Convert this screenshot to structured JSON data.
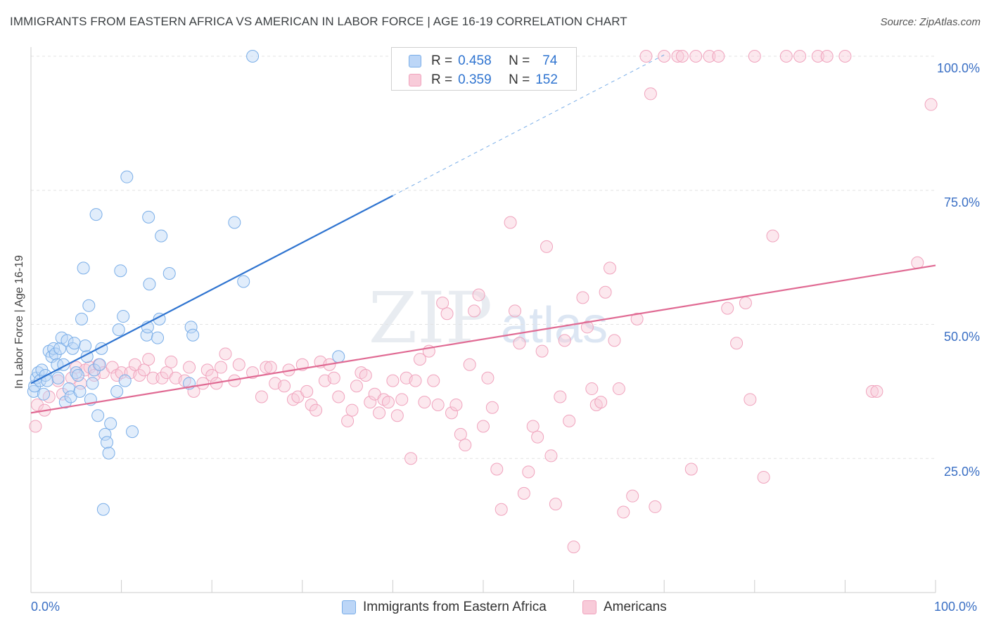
{
  "title": "IMMIGRANTS FROM EASTERN AFRICA VS AMERICAN IN LABOR FORCE | AGE 16-19 CORRELATION CHART",
  "source": "Source: ZipAtlas.com",
  "colors": {
    "blue": "#7aaee8",
    "blue_fill": "#bcd6f7",
    "blue_line": "#2f74d0",
    "pink": "#f0a3bd",
    "pink_fill": "#f8cbd9",
    "pink_line": "#e06a93",
    "axis_text": "#3a6fc4"
  },
  "legend": {
    "rows": [
      {
        "r_label": "R =",
        "r_value": "0.458",
        "n_label": "N =",
        "n_value": "74"
      },
      {
        "r_label": "R =",
        "r_value": "0.359",
        "n_label": "N =",
        "n_value": "152"
      }
    ]
  },
  "bottom_legend": [
    "Immigrants from Eastern Africa",
    "Americans"
  ],
  "watermark": {
    "zip": "ZIP",
    "atlas": "atlas"
  },
  "chart_data": {
    "type": "scatter",
    "title": "IMMIGRANTS FROM EASTERN AFRICA VS AMERICAN IN LABOR FORCE | AGE 16-19 CORRELATION CHART",
    "xlabel": "",
    "ylabel": "In Labor Force | Age 16-19",
    "xlim": [
      0,
      100
    ],
    "ylim": [
      0,
      100
    ],
    "x_tick_labels": [
      "0.0%",
      "100.0%"
    ],
    "y_tick_labels": [
      "25.0%",
      "50.0%",
      "75.0%",
      "100.0%"
    ],
    "y_ticks": [
      25,
      50,
      75,
      100
    ],
    "grid": true,
    "legend_position": "top-center",
    "series": [
      {
        "name": "Immigrants from Eastern Africa",
        "color": "#7aaee8",
        "trend": {
          "x0": 0,
          "y0": 39.0,
          "x1": 40.0,
          "y1": 74.0,
          "dashed_to_x": 70.0
        },
        "points": [
          [
            0.3,
            37.5
          ],
          [
            0.4,
            38.5
          ],
          [
            0.6,
            40.0
          ],
          [
            0.8,
            41.0
          ],
          [
            1.0,
            39.5
          ],
          [
            1.2,
            41.5
          ],
          [
            1.4,
            37.0
          ],
          [
            1.6,
            40.5
          ],
          [
            1.8,
            39.5
          ],
          [
            2.0,
            45.0
          ],
          [
            2.3,
            44.0
          ],
          [
            2.5,
            45.5
          ],
          [
            2.7,
            44.5
          ],
          [
            2.9,
            42.5
          ],
          [
            3.0,
            40.0
          ],
          [
            3.2,
            45.5
          ],
          [
            3.4,
            47.5
          ],
          [
            3.6,
            42.5
          ],
          [
            3.8,
            35.5
          ],
          [
            4.0,
            47.0
          ],
          [
            4.2,
            38.0
          ],
          [
            4.4,
            36.5
          ],
          [
            4.6,
            45.5
          ],
          [
            4.8,
            46.5
          ],
          [
            5.0,
            41.0
          ],
          [
            5.2,
            40.5
          ],
          [
            5.4,
            37.5
          ],
          [
            5.6,
            51.0
          ],
          [
            5.8,
            60.5
          ],
          [
            6.0,
            46.0
          ],
          [
            6.2,
            44.0
          ],
          [
            6.4,
            53.5
          ],
          [
            6.6,
            36.0
          ],
          [
            6.8,
            39.0
          ],
          [
            7.0,
            41.5
          ],
          [
            7.2,
            70.5
          ],
          [
            7.4,
            33.0
          ],
          [
            7.6,
            42.5
          ],
          [
            7.8,
            45.5
          ],
          [
            8.0,
            15.5
          ],
          [
            8.2,
            29.5
          ],
          [
            8.4,
            28.0
          ],
          [
            8.6,
            26.0
          ],
          [
            8.8,
            31.5
          ],
          [
            9.5,
            37.5
          ],
          [
            9.7,
            49.0
          ],
          [
            9.9,
            60.0
          ],
          [
            10.2,
            51.5
          ],
          [
            10.4,
            39.5
          ],
          [
            10.6,
            77.5
          ],
          [
            11.2,
            30.0
          ],
          [
            12.8,
            48.0
          ],
          [
            12.9,
            49.5
          ],
          [
            13.0,
            70.0
          ],
          [
            13.1,
            57.5
          ],
          [
            14.0,
            47.5
          ],
          [
            14.2,
            51.0
          ],
          [
            14.4,
            66.5
          ],
          [
            15.3,
            59.5
          ],
          [
            17.5,
            39.0
          ],
          [
            17.7,
            49.5
          ],
          [
            17.9,
            48.0
          ],
          [
            22.5,
            69.0
          ],
          [
            23.5,
            58.0
          ],
          [
            24.5,
            100.0
          ],
          [
            34.0,
            44.0
          ]
        ]
      },
      {
        "name": "Americans",
        "color": "#f0a3bd",
        "trend": {
          "x0": 0,
          "y0": 33.5,
          "x1": 100,
          "y1": 61.0
        },
        "points": [
          [
            0.5,
            31.0
          ],
          [
            0.7,
            35.0
          ],
          [
            1.5,
            34.0
          ],
          [
            2.0,
            36.5
          ],
          [
            3.0,
            39.5
          ],
          [
            3.5,
            37.0
          ],
          [
            4.5,
            40.0
          ],
          [
            5.0,
            42.0
          ],
          [
            5.5,
            39.0
          ],
          [
            6.0,
            41.5
          ],
          [
            6.5,
            42.0
          ],
          [
            7.0,
            40.5
          ],
          [
            7.5,
            42.5
          ],
          [
            8.0,
            41.0
          ],
          [
            9.0,
            42.0
          ],
          [
            9.5,
            40.5
          ],
          [
            10.0,
            41.0
          ],
          [
            11.0,
            41.0
          ],
          [
            11.5,
            42.5
          ],
          [
            12.0,
            40.5
          ],
          [
            12.5,
            41.5
          ],
          [
            13.0,
            43.5
          ],
          [
            13.5,
            40.0
          ],
          [
            14.5,
            40.0
          ],
          [
            15.0,
            41.0
          ],
          [
            15.5,
            43.0
          ],
          [
            16.0,
            40.0
          ],
          [
            17.0,
            39.5
          ],
          [
            17.5,
            42.0
          ],
          [
            18.0,
            37.5
          ],
          [
            19.0,
            39.0
          ],
          [
            19.5,
            41.5
          ],
          [
            20.0,
            40.5
          ],
          [
            20.5,
            39.0
          ],
          [
            21.0,
            42.0
          ],
          [
            21.5,
            44.5
          ],
          [
            22.5,
            39.5
          ],
          [
            23.0,
            42.5
          ],
          [
            24.5,
            41.0
          ],
          [
            25.5,
            36.5
          ],
          [
            26.0,
            42.0
          ],
          [
            26.5,
            42.0
          ],
          [
            27.0,
            39.0
          ],
          [
            28.0,
            38.5
          ],
          [
            28.5,
            41.5
          ],
          [
            29.0,
            36.0
          ],
          [
            29.5,
            36.5
          ],
          [
            30.0,
            42.5
          ],
          [
            30.5,
            37.5
          ],
          [
            31.0,
            35.0
          ],
          [
            31.5,
            34.0
          ],
          [
            32.0,
            43.0
          ],
          [
            32.5,
            39.5
          ],
          [
            33.0,
            42.5
          ],
          [
            33.5,
            40.0
          ],
          [
            34.0,
            36.5
          ],
          [
            35.0,
            32.0
          ],
          [
            35.5,
            34.0
          ],
          [
            36.0,
            38.5
          ],
          [
            36.5,
            41.0
          ],
          [
            37.0,
            40.5
          ],
          [
            37.5,
            35.5
          ],
          [
            38.0,
            37.0
          ],
          [
            38.5,
            33.5
          ],
          [
            39.0,
            36.0
          ],
          [
            39.5,
            35.5
          ],
          [
            40.0,
            39.5
          ],
          [
            40.5,
            33.0
          ],
          [
            41.0,
            36.0
          ],
          [
            41.5,
            40.0
          ],
          [
            42.0,
            25.0
          ],
          [
            42.5,
            39.5
          ],
          [
            43.0,
            43.5
          ],
          [
            43.5,
            35.5
          ],
          [
            44.0,
            45.0
          ],
          [
            44.5,
            39.5
          ],
          [
            45.0,
            35.0
          ],
          [
            45.5,
            54.0
          ],
          [
            46.0,
            52.0
          ],
          [
            46.5,
            33.5
          ],
          [
            47.0,
            35.0
          ],
          [
            47.5,
            29.5
          ],
          [
            48.0,
            27.5
          ],
          [
            48.5,
            42.5
          ],
          [
            49.0,
            52.5
          ],
          [
            49.5,
            55.5
          ],
          [
            50.0,
            31.0
          ],
          [
            50.5,
            40.0
          ],
          [
            51.0,
            34.5
          ],
          [
            51.5,
            23.0
          ],
          [
            52.0,
            15.5
          ],
          [
            53.0,
            69.0
          ],
          [
            53.5,
            52.5
          ],
          [
            54.0,
            46.5
          ],
          [
            54.5,
            18.5
          ],
          [
            55.0,
            22.5
          ],
          [
            55.5,
            31.0
          ],
          [
            56.0,
            29.0
          ],
          [
            56.5,
            45.0
          ],
          [
            57.0,
            64.5
          ],
          [
            57.5,
            25.5
          ],
          [
            58.0,
            16.5
          ],
          [
            58.5,
            36.5
          ],
          [
            59.0,
            47.0
          ],
          [
            59.5,
            32.0
          ],
          [
            60.0,
            8.5
          ],
          [
            61.0,
            55.0
          ],
          [
            61.5,
            49.5
          ],
          [
            62.0,
            38.0
          ],
          [
            62.5,
            35.0
          ],
          [
            63.0,
            35.5
          ],
          [
            63.5,
            56.0
          ],
          [
            64.0,
            60.5
          ],
          [
            64.5,
            47.0
          ],
          [
            65.0,
            38.0
          ],
          [
            65.5,
            15.0
          ],
          [
            66.5,
            18.0
          ],
          [
            67.0,
            51.0
          ],
          [
            68.0,
            100.0
          ],
          [
            68.5,
            93.0
          ],
          [
            69.0,
            16.0
          ],
          [
            70.0,
            100.0
          ],
          [
            71.5,
            100.0
          ],
          [
            72.0,
            100.0
          ],
          [
            73.0,
            23.0
          ],
          [
            73.5,
            100.0
          ],
          [
            75.0,
            100.0
          ],
          [
            76.0,
            100.0
          ],
          [
            77.0,
            53.0
          ],
          [
            78.0,
            46.5
          ],
          [
            79.0,
            54.0
          ],
          [
            79.5,
            36.0
          ],
          [
            80.0,
            100.0
          ],
          [
            81.0,
            21.5
          ],
          [
            82.0,
            66.5
          ],
          [
            83.5,
            100.0
          ],
          [
            85.0,
            100.0
          ],
          [
            87.0,
            100.0
          ],
          [
            88.0,
            100.0
          ],
          [
            90.0,
            100.0
          ],
          [
            93.0,
            37.5
          ],
          [
            93.5,
            37.5
          ],
          [
            98.0,
            61.5
          ],
          [
            99.5,
            91.0
          ]
        ]
      }
    ]
  }
}
